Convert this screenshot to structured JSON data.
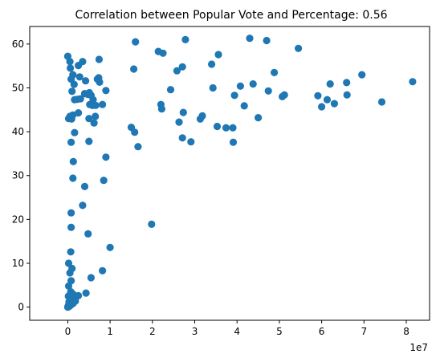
{
  "chart_data": {
    "type": "scatter",
    "title": "Correlation between Popular Vote and Percentage: 0.56",
    "xlabel": "",
    "ylabel": "",
    "x_offset_label": "1e7",
    "xlim": [
      -9000000,
      85500000
    ],
    "ylim": [
      -3,
      64
    ],
    "x_ticks": [
      0,
      10000000,
      20000000,
      30000000,
      40000000,
      50000000,
      60000000,
      70000000,
      80000000
    ],
    "x_tick_labels": [
      "0",
      "1",
      "2",
      "3",
      "4",
      "5",
      "6",
      "7",
      "8"
    ],
    "y_ticks": [
      0,
      10,
      20,
      30,
      40,
      50,
      60
    ],
    "y_tick_labels": [
      "0",
      "10",
      "20",
      "30",
      "40",
      "50",
      "60"
    ],
    "grid": false,
    "marker_color": "#1f77b4",
    "series": [
      {
        "points": [
          [
            0,
            57.2
          ],
          [
            500000,
            56.0
          ],
          [
            600000,
            54.5
          ],
          [
            1200000,
            53.0
          ],
          [
            800000,
            52.0
          ],
          [
            1500000,
            50.8
          ],
          [
            2500000,
            55.1
          ],
          [
            3500000,
            56.0
          ],
          [
            2800000,
            52.5
          ],
          [
            4200000,
            51.6
          ],
          [
            1000000,
            49.2
          ],
          [
            200000,
            43.0
          ],
          [
            500000,
            43.5
          ],
          [
            900000,
            42.9
          ],
          [
            1200000,
            43.8
          ],
          [
            1600000,
            47.3
          ],
          [
            2300000,
            47.4
          ],
          [
            3000000,
            47.5
          ],
          [
            4000000,
            48.7
          ],
          [
            4800000,
            48.5
          ],
          [
            5100000,
            48.9
          ],
          [
            5500000,
            48.3
          ],
          [
            6000000,
            47.3
          ],
          [
            5200000,
            46.2
          ],
          [
            5800000,
            46.0
          ],
          [
            6600000,
            46.0
          ],
          [
            7000000,
            52.0
          ],
          [
            7300000,
            52.3
          ],
          [
            7500000,
            51.3
          ],
          [
            7400000,
            56.5
          ],
          [
            8200000,
            46.2
          ],
          [
            9000000,
            49.4
          ],
          [
            5000000,
            43.0
          ],
          [
            6200000,
            42.0
          ],
          [
            6500000,
            43.5
          ],
          [
            2500000,
            44.3
          ],
          [
            1600000,
            39.8
          ],
          [
            800000,
            37.6
          ],
          [
            5000000,
            37.8
          ],
          [
            9000000,
            34.2
          ],
          [
            1300000,
            33.2
          ],
          [
            1200000,
            29.4
          ],
          [
            4000000,
            27.5
          ],
          [
            3500000,
            23.2
          ],
          [
            8500000,
            28.9
          ],
          [
            800000,
            21.5
          ],
          [
            800000,
            18.2
          ],
          [
            4800000,
            16.7
          ],
          [
            10000000,
            13.6
          ],
          [
            700000,
            12.6
          ],
          [
            1000000,
            8.8
          ],
          [
            200000,
            10.0
          ],
          [
            500000,
            7.8
          ],
          [
            5500000,
            6.7
          ],
          [
            8200000,
            8.3
          ],
          [
            800000,
            6.0
          ],
          [
            200000,
            4.8
          ],
          [
            700000,
            3.5
          ],
          [
            1200000,
            3.0
          ],
          [
            2500000,
            2.6
          ],
          [
            4300000,
            3.2
          ],
          [
            1800000,
            1.4
          ],
          [
            1000000,
            2.1
          ],
          [
            500000,
            1.5
          ],
          [
            300000,
            0.8
          ],
          [
            100000,
            0.3
          ],
          [
            0,
            0.0
          ],
          [
            200000,
            0.1
          ],
          [
            400000,
            0.2
          ],
          [
            600000,
            0.4
          ],
          [
            900000,
            0.6
          ],
          [
            1300000,
            0.9
          ],
          [
            300000,
            1.2
          ],
          [
            700000,
            1.0
          ],
          [
            150000,
            2.5
          ],
          [
            16000000,
            60.5
          ],
          [
            15600000,
            54.3
          ],
          [
            15000000,
            41.0
          ],
          [
            15800000,
            39.9
          ],
          [
            16600000,
            36.6
          ],
          [
            19800000,
            18.9
          ],
          [
            21400000,
            58.3
          ],
          [
            22500000,
            57.9
          ],
          [
            22000000,
            46.2
          ],
          [
            22200000,
            45.2
          ],
          [
            24300000,
            49.6
          ],
          [
            25800000,
            53.9
          ],
          [
            27100000,
            54.8
          ],
          [
            27800000,
            61.0
          ],
          [
            26300000,
            42.2
          ],
          [
            27300000,
            44.4
          ],
          [
            27100000,
            38.6
          ],
          [
            29100000,
            37.7
          ],
          [
            31300000,
            42.9
          ],
          [
            31800000,
            43.6
          ],
          [
            34000000,
            55.4
          ],
          [
            34300000,
            50.0
          ],
          [
            35600000,
            57.6
          ],
          [
            35300000,
            41.2
          ],
          [
            37400000,
            40.9
          ],
          [
            39000000,
            40.9
          ],
          [
            39100000,
            37.6
          ],
          [
            39400000,
            48.3
          ],
          [
            40800000,
            50.4
          ],
          [
            41700000,
            45.9
          ],
          [
            43000000,
            61.3
          ],
          [
            43800000,
            50.9
          ],
          [
            45000000,
            43.2
          ],
          [
            47000000,
            60.8
          ],
          [
            47400000,
            49.3
          ],
          [
            48800000,
            53.5
          ],
          [
            50700000,
            48.0
          ],
          [
            51200000,
            48.4
          ],
          [
            54500000,
            59.0
          ],
          [
            59100000,
            48.2
          ],
          [
            60000000,
            45.7
          ],
          [
            61300000,
            47.3
          ],
          [
            62000000,
            50.9
          ],
          [
            63000000,
            46.4
          ],
          [
            65900000,
            51.2
          ],
          [
            66000000,
            48.4
          ],
          [
            69500000,
            53.0
          ],
          [
            74200000,
            46.8
          ],
          [
            81500000,
            51.4
          ]
        ]
      }
    ]
  }
}
